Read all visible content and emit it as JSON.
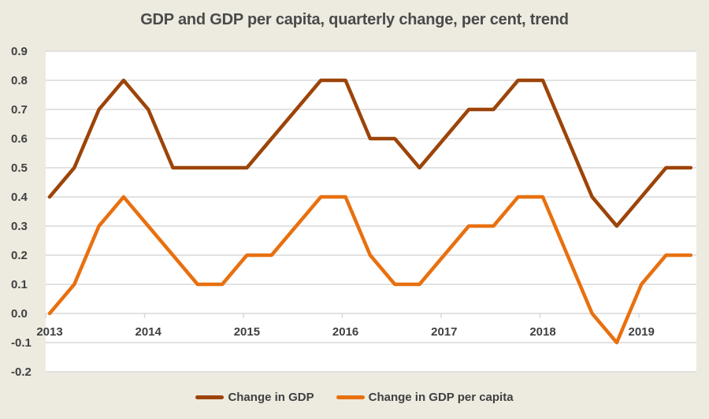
{
  "chart_data": {
    "type": "line",
    "title": "GDP and GDP per capita, quarterly change, per cent, trend",
    "xlabel": "",
    "ylabel": "",
    "ylim": [
      -0.2,
      0.9
    ],
    "yticks": [
      "0.9",
      "0.8",
      "0.7",
      "0.6",
      "0.5",
      "0.4",
      "0.3",
      "0.2",
      "0.1",
      "0.0",
      "-0.1",
      "-0.2"
    ],
    "ytick_values": [
      0.9,
      0.8,
      0.7,
      0.6,
      0.5,
      0.4,
      0.3,
      0.2,
      0.1,
      0.0,
      -0.1,
      -0.2
    ],
    "xticks": [
      "2013",
      "2014",
      "2015",
      "2016",
      "2017",
      "2018",
      "2019"
    ],
    "x": [
      "2013Q1",
      "2013Q2",
      "2013Q3",
      "2013Q4",
      "2014Q1",
      "2014Q2",
      "2014Q3",
      "2014Q4",
      "2015Q1",
      "2015Q2",
      "2015Q3",
      "2015Q4",
      "2016Q1",
      "2016Q2",
      "2016Q3",
      "2016Q4",
      "2017Q1",
      "2017Q2",
      "2017Q3",
      "2017Q4",
      "2018Q1",
      "2018Q2",
      "2018Q3",
      "2018Q4",
      "2019Q1",
      "2019Q2",
      "2019Q3"
    ],
    "grid": true,
    "legend_position": "bottom",
    "series": [
      {
        "name": "Change in GDP",
        "color": "#9C4409",
        "values": [
          0.4,
          0.5,
          0.7,
          0.8,
          0.7,
          0.5,
          0.5,
          0.5,
          0.5,
          0.6,
          0.7,
          0.8,
          0.8,
          0.6,
          0.6,
          0.5,
          0.6,
          0.7,
          0.7,
          0.8,
          0.8,
          0.6,
          0.4,
          0.3,
          0.4,
          0.5,
          0.5
        ]
      },
      {
        "name": "Change in GDP per capita",
        "color": "#E8700F",
        "values": [
          0.0,
          0.1,
          0.3,
          0.4,
          0.3,
          0.2,
          0.1,
          0.1,
          0.2,
          0.2,
          0.3,
          0.4,
          0.4,
          0.2,
          0.1,
          0.1,
          0.2,
          0.3,
          0.3,
          0.4,
          0.4,
          0.2,
          0.0,
          -0.1,
          0.1,
          0.2,
          0.2
        ]
      }
    ]
  },
  "colors": {
    "background": "#EDEAE0",
    "plot_background": "#FFFFFF",
    "gridline": "#D9D9D9",
    "text": "#404040"
  }
}
